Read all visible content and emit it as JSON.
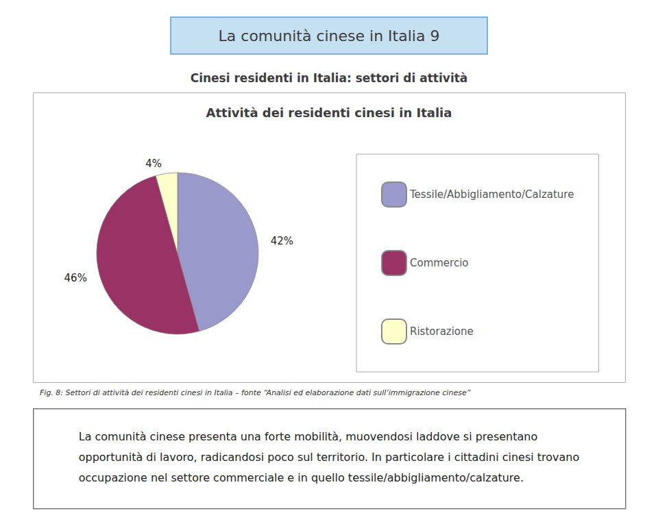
{
  "chart_data": {
    "type": "pie",
    "title": "La comunità cinese in Italia 9",
    "subtitle": "Cinesi residenti in Italia: settori di attività",
    "annotations": [
      "Attività dei residenti cinesi in Italia",
      "Fig. 8: Settori di attività dei residenti cinesi in Italia – fonte “Analisi ed elaborazione dati sull’immigrazione cinese”",
      "La comunità cinese presenta una forte mobilità, muovendosi laddove si presentano\nopportunità di lavoro, radicandosi poco sul territorio. In particolare i cittadini cinesi trovano\noccupazione nel settore commerciale e in quello tessile/abbigliamento/calzature."
    ],
    "categories": [
      "Tessile/Abbigliamento/Calzature",
      "Commercio",
      "Ristorazione"
    ],
    "values": [
      42,
      46,
      4
    ],
    "value_labels": [
      "42%",
      "46%",
      "4%"
    ],
    "colors": [
      "#9999cc",
      "#993366",
      "#ffffcc"
    ],
    "data_labels": true,
    "legend": "right"
  }
}
